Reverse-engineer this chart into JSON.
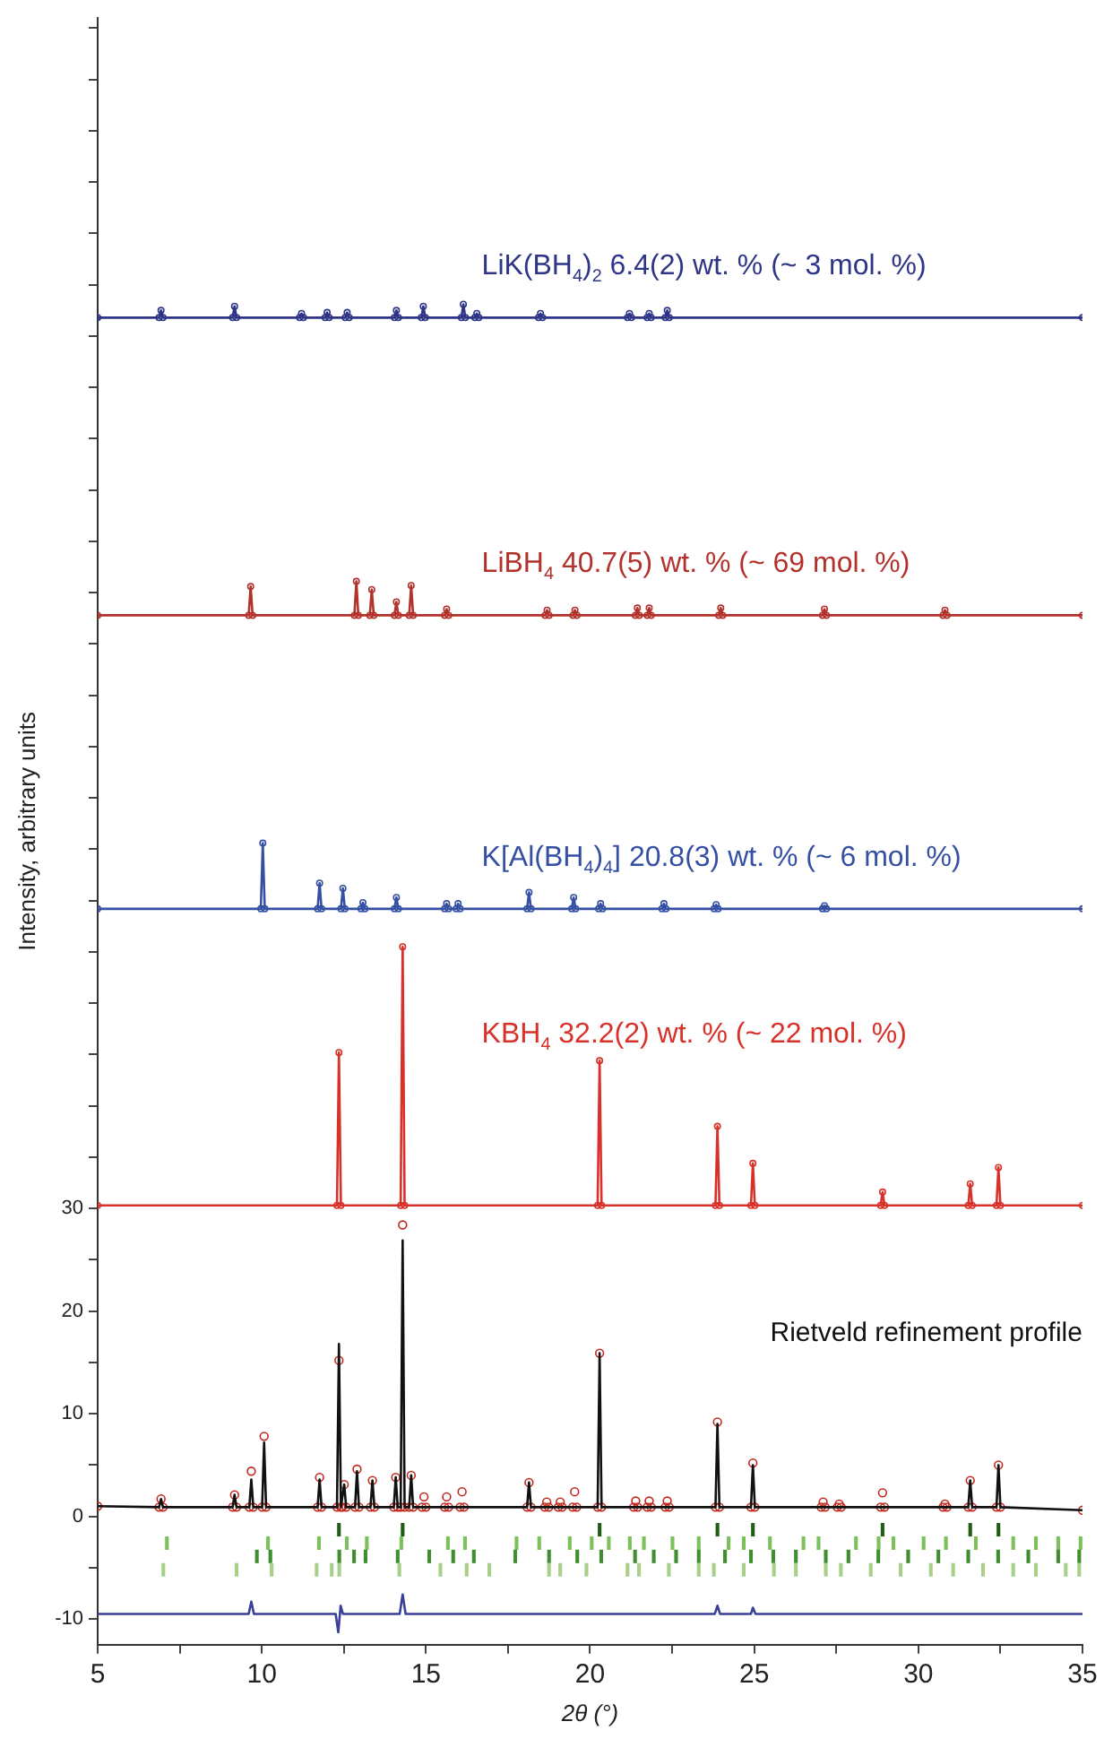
{
  "chart_data": {
    "type": "line",
    "xlabel": "2θ (°)",
    "ylabel": "Intensity, arbitrary units",
    "xlim": [
      5,
      35
    ],
    "xticks": [
      5,
      {
        "value": 7.5,
        "label": null
      },
      10,
      {
        "value": 12.5,
        "label": null
      },
      15,
      {
        "value": 17.5,
        "label": null
      },
      20,
      {
        "value": 22.5,
        "label": null
      },
      25,
      {
        "value": 27.5,
        "label": null
      },
      30,
      {
        "value": 32.5,
        "label": null
      },
      35
    ],
    "ylim": [
      -12.5,
      146
    ],
    "yticks": [
      -10,
      {
        "value": -5,
        "label": null
      },
      0,
      {
        "value": 5,
        "label": null
      },
      10,
      {
        "value": 15,
        "label": null
      },
      20,
      {
        "value": 25,
        "label": null
      },
      30,
      {
        "value": 35,
        "label": null
      },
      {
        "value": 40,
        "label": null
      },
      {
        "value": 45,
        "label": null
      },
      {
        "value": 50,
        "label": null
      },
      {
        "value": 55,
        "label": null
      },
      {
        "value": 60,
        "label": null
      },
      {
        "value": 65,
        "label": null
      },
      {
        "value": 70,
        "label": null
      },
      {
        "value": 75,
        "label": null
      },
      {
        "value": 80,
        "label": null
      },
      {
        "value": 85,
        "label": null
      },
      {
        "value": 90,
        "label": null
      },
      {
        "value": 95,
        "label": null
      },
      {
        "value": 100,
        "label": null
      },
      {
        "value": 105,
        "label": null
      },
      {
        "value": 110,
        "label": null
      },
      {
        "value": 115,
        "label": null
      },
      {
        "value": 120,
        "label": null
      },
      {
        "value": 125,
        "label": null
      },
      {
        "value": 130,
        "label": null
      },
      {
        "value": 135,
        "label": null
      },
      {
        "value": 140,
        "label": null
      },
      {
        "value": 145,
        "label": null
      }
    ],
    "tick_labels": "xy",
    "grid": false,
    "legend": false,
    "annotations": [
      "Rietveld refinement profile"
    ],
    "series": [
      {
        "name": "LiK(BH$_{4}$)$_{2}$ 6.4(2) wt. % (~ 3 mol. %)",
        "color": "#2e3587",
        "marker": "circle",
        "x": [
          5,
          6.87,
          6.93,
          6.99,
          9.11,
          9.17,
          9.23,
          11.15,
          11.21,
          11.27,
          11.93,
          11.99,
          12.05,
          12.54,
          12.6,
          12.66,
          14.04,
          14.1,
          14.16,
          14.86,
          14.92,
          14.98,
          16.08,
          16.14,
          16.2,
          16.49,
          16.55,
          16.61,
          18.43,
          18.49,
          18.55,
          21.14,
          21.2,
          21.26,
          21.74,
          21.8,
          21.86,
          22.29,
          22.35,
          22.41,
          35
        ],
        "values": [
          116.8,
          116.8,
          117.5,
          116.8,
          116.8,
          117.9,
          116.8,
          116.8,
          117.2,
          116.8,
          116.8,
          117.3,
          116.8,
          116.8,
          117.3,
          116.8,
          116.8,
          117.5,
          116.8,
          116.8,
          117.9,
          116.8,
          116.8,
          118.1,
          116.8,
          116.8,
          117.2,
          116.8,
          116.8,
          117.2,
          116.8,
          116.8,
          117.2,
          116.8,
          116.8,
          117.2,
          116.8,
          116.8,
          117.5,
          116.8,
          116.8
        ]
      },
      {
        "name": "LiBH$_{4}$ 40.7(5) wt. % (~ 69 mol. %)",
        "color": "#b2322b",
        "marker": "circle",
        "x": [
          5,
          9.6,
          9.66,
          9.72,
          12.82,
          12.88,
          12.94,
          13.29,
          13.35,
          13.41,
          14.04,
          14.1,
          14.16,
          14.49,
          14.55,
          14.61,
          15.57,
          15.63,
          15.69,
          18.63,
          18.69,
          18.75,
          19.48,
          19.54,
          19.6,
          21.38,
          21.44,
          21.5,
          21.74,
          21.8,
          21.86,
          23.92,
          23.98,
          24.04,
          27.08,
          27.14,
          27.2,
          30.75,
          30.81,
          30.87,
          35
        ],
        "values": [
          87.8,
          87.8,
          90.6,
          87.8,
          87.8,
          91.1,
          87.8,
          87.8,
          90.3,
          87.8,
          87.8,
          89.1,
          87.8,
          87.8,
          90.7,
          87.8,
          87.8,
          88.4,
          87.8,
          87.8,
          88.3,
          87.8,
          87.8,
          88.3,
          87.8,
          87.8,
          88.5,
          87.8,
          87.8,
          88.5,
          87.8,
          87.8,
          88.5,
          87.8,
          87.8,
          88.4,
          87.8,
          87.8,
          88.3,
          87.8,
          87.8
        ]
      },
      {
        "name": "K[Al(BH$_{4}$)$_{4}$] 20.8(3) wt. % (~ 6 mol. %)",
        "color": "#3550a3",
        "marker": "circle",
        "x": [
          5,
          9.97,
          10.03,
          10.09,
          11.7,
          11.76,
          11.82,
          12.41,
          12.47,
          12.53,
          13.02,
          13.08,
          13.14,
          14.04,
          14.1,
          14.16,
          15.57,
          15.63,
          15.69,
          15.92,
          15.98,
          16.04,
          18.08,
          18.14,
          18.2,
          19.44,
          19.5,
          19.56,
          20.26,
          20.32,
          20.38,
          22.19,
          22.25,
          22.31,
          23.78,
          23.84,
          23.9,
          27.08,
          27.14,
          27.2,
          35
        ],
        "values": [
          59.2,
          59.2,
          65.6,
          59.2,
          59.2,
          61.7,
          59.2,
          59.2,
          61.2,
          59.2,
          59.2,
          59.8,
          59.2,
          59.2,
          60.3,
          59.2,
          59.2,
          59.7,
          59.2,
          59.2,
          59.7,
          59.2,
          59.2,
          60.8,
          59.2,
          59.2,
          60.3,
          59.2,
          59.2,
          59.7,
          59.2,
          59.2,
          59.7,
          59.2,
          59.2,
          59.6,
          59.2,
          59.2,
          59.5,
          59.2,
          59.2
        ]
      },
      {
        "name": "KBH$_{4}$ 32.2(2) wt. % (~ 22 mol. %)",
        "color": "#d8312a",
        "marker": "circle",
        "x": [
          5,
          12.29,
          12.35,
          12.41,
          14.23,
          14.29,
          14.35,
          20.23,
          20.29,
          20.35,
          23.82,
          23.88,
          23.94,
          24.9,
          24.96,
          25.02,
          28.85,
          28.91,
          28.97,
          31.52,
          31.58,
          31.64,
          32.38,
          32.44,
          32.5,
          35
        ],
        "values": [
          30.3,
          30.3,
          45.2,
          30.3,
          30.3,
          55.5,
          30.3,
          30.3,
          44.4,
          30.3,
          30.3,
          38.0,
          30.3,
          30.3,
          34.4,
          30.3,
          30.3,
          31.6,
          30.3,
          30.3,
          32.4,
          30.3,
          30.3,
          34.0,
          30.3,
          30.3
        ]
      },
      {
        "type": "scatter",
        "color": "#c0281e",
        "marker": "circle",
        "x": [
          5,
          6.87,
          6.93,
          6.99,
          9.11,
          9.17,
          9.23,
          9.62,
          9.68,
          9.74,
          10.01,
          10.07,
          10.13,
          11.7,
          11.76,
          11.82,
          12.29,
          12.35,
          12.41,
          12.45,
          12.51,
          12.57,
          12.84,
          12.9,
          12.96,
          13.31,
          13.37,
          13.43,
          14.02,
          14.08,
          14.14,
          14.23,
          14.29,
          14.35,
          14.49,
          14.55,
          14.61,
          14.88,
          14.94,
          15.0,
          15.57,
          15.63,
          15.69,
          16.04,
          16.1,
          16.16,
          18.08,
          18.14,
          18.2,
          18.62,
          18.68,
          18.74,
          19.03,
          19.09,
          19.15,
          19.47,
          19.53,
          19.59,
          20.23,
          20.29,
          20.35,
          21.33,
          21.39,
          21.45,
          21.74,
          21.8,
          21.86,
          22.29,
          22.35,
          22.41,
          23.82,
          23.88,
          23.94,
          24.9,
          24.96,
          25.02,
          27.04,
          27.1,
          27.16,
          27.53,
          27.59,
          27.65,
          28.85,
          28.91,
          28.97,
          30.75,
          30.81,
          30.87,
          31.52,
          31.58,
          31.64,
          32.38,
          32.44,
          32.5,
          35
        ],
        "values": [
          1.0,
          0.9,
          1.7,
          0.9,
          0.9,
          2.1,
          0.9,
          0.9,
          4.4,
          0.9,
          0.9,
          7.8,
          0.9,
          0.9,
          3.8,
          0.9,
          0.9,
          15.2,
          0.9,
          0.9,
          3.1,
          0.9,
          0.9,
          4.6,
          0.9,
          0.9,
          3.5,
          0.9,
          0.9,
          3.8,
          0.9,
          0.9,
          28.4,
          0.9,
          0.9,
          4.0,
          0.9,
          0.9,
          1.9,
          0.9,
          0.9,
          1.9,
          0.9,
          0.9,
          2.4,
          0.9,
          0.9,
          3.3,
          0.9,
          0.9,
          1.4,
          0.9,
          0.9,
          1.4,
          0.9,
          0.9,
          2.4,
          0.9,
          0.9,
          15.9,
          0.9,
          0.9,
          1.5,
          0.9,
          0.9,
          1.5,
          0.9,
          0.9,
          1.5,
          0.9,
          0.9,
          9.2,
          0.9,
          0.9,
          5.2,
          0.9,
          0.9,
          1.4,
          0.9,
          0.9,
          1.2,
          0.9,
          0.9,
          2.3,
          0.9,
          0.9,
          1.2,
          0.9,
          0.9,
          3.5,
          0.9,
          0.9,
          5.0,
          0.9,
          0.6
        ]
      },
      {
        "color": "#111111",
        "marker": "none",
        "x": [
          5,
          6.87,
          6.93,
          6.99,
          9.11,
          9.17,
          9.23,
          9.62,
          9.68,
          9.74,
          10.01,
          10.07,
          10.13,
          11.7,
          11.76,
          11.82,
          12.29,
          12.35,
          12.41,
          12.45,
          12.51,
          12.57,
          12.84,
          12.9,
          12.96,
          13.31,
          13.37,
          13.43,
          14.02,
          14.08,
          14.14,
          14.23,
          14.29,
          14.35,
          14.49,
          14.55,
          14.61,
          18.08,
          18.14,
          18.2,
          20.23,
          20.29,
          20.35,
          23.82,
          23.88,
          23.94,
          24.9,
          24.96,
          25.02,
          31.52,
          31.58,
          31.64,
          32.38,
          32.44,
          32.5,
          35
        ],
        "values": [
          1.0,
          0.9,
          1.7,
          0.9,
          0.9,
          2.1,
          0.9,
          0.9,
          3.6,
          0.9,
          0.9,
          7.2,
          0.9,
          0.9,
          3.6,
          0.9,
          0.9,
          16.8,
          0.9,
          0.9,
          3.1,
          0.9,
          0.9,
          4.4,
          0.9,
          0.9,
          3.5,
          0.9,
          0.9,
          3.8,
          0.9,
          0.9,
          26.9,
          0.9,
          0.9,
          4.0,
          0.9,
          0.9,
          3.3,
          0.9,
          0.9,
          15.9,
          0.9,
          0.9,
          9.0,
          0.9,
          0.9,
          5.0,
          0.9,
          0.9,
          3.5,
          0.9,
          0.9,
          5.0,
          0.9,
          0.6
        ]
      },
      {
        "color": "#3a3f9a",
        "marker": "none",
        "x": [
          5,
          9.6,
          9.68,
          9.76,
          12.25,
          12.33,
          12.4,
          12.47,
          14.2,
          14.29,
          14.38,
          23.8,
          23.88,
          23.96,
          24.9,
          24.96,
          25.04,
          35
        ],
        "values": [
          -9.5,
          -9.5,
          -8.3,
          -9.5,
          -9.5,
          -11.3,
          -8.7,
          -9.5,
          -9.5,
          -7.6,
          -9.5,
          -9.5,
          -8.7,
          -9.5,
          -9.5,
          -8.9,
          -9.5,
          -9.5
        ]
      },
      {
        "type": "bar",
        "color": "#1f5f14",
        "x": [
          12.35,
          14.29,
          20.29,
          23.88,
          24.96,
          28.91,
          31.58,
          32.44
        ],
        "base": [
          -1.9,
          -1.9,
          -1.9,
          -1.9,
          -1.9,
          -1.9,
          -1.9,
          -1.9
        ],
        "values": [
          1.2,
          1.2,
          1.2,
          1.2,
          1.2,
          1.2,
          1.2,
          1.2
        ]
      },
      {
        "type": "bar",
        "color": "#7cc05a",
        "x": [
          7.11,
          10.19,
          11.74,
          12.59,
          13.2,
          14.25,
          15.67,
          16.19,
          17.76,
          18.45,
          19.38,
          20.05,
          20.57,
          21.21,
          21.64,
          22.51,
          23.31,
          24.22,
          24.68,
          25.48,
          26.5,
          26.96,
          28.1,
          28.79,
          29.24,
          30.16,
          30.84,
          31.75,
          32.89,
          33.58,
          34.26,
          34.94
        ],
        "base": [
          -3.2,
          -3.2,
          -3.2,
          -3.2,
          -3.2,
          -3.2,
          -3.2,
          -3.2,
          -3.2,
          -3.2,
          -3.2,
          -3.2,
          -3.2,
          -3.2,
          -3.2,
          -3.2,
          -3.2,
          -3.2,
          -3.2,
          -3.2,
          -3.2,
          -3.2,
          -3.2,
          -3.2,
          -3.2,
          -3.2,
          -3.2,
          -3.2,
          -3.2,
          -3.2,
          -3.2,
          -3.2
        ],
        "values": [
          1.2,
          1.2,
          1.2,
          1.2,
          1.2,
          1.2,
          1.2,
          1.2,
          1.2,
          1.2,
          1.2,
          1.2,
          1.2,
          1.2,
          1.2,
          1.2,
          1.2,
          1.2,
          1.2,
          1.2,
          1.2,
          1.2,
          1.2,
          1.2,
          1.2,
          1.2,
          1.2,
          1.2,
          1.2,
          1.2,
          1.2,
          1.2
        ]
      },
      {
        "type": "bar",
        "color": "#3f8f2f",
        "x": [
          9.85,
          10.26,
          12.36,
          12.81,
          13.16,
          14.14,
          15.1,
          15.83,
          16.46,
          17.72,
          18.75,
          19.61,
          20.34,
          21.37,
          21.94,
          22.62,
          23.31,
          24.11,
          24.9,
          25.58,
          26.27,
          27.18,
          27.87,
          28.78,
          29.69,
          30.61,
          31.52,
          32.43,
          33.35,
          34.26,
          34.9
        ],
        "base": [
          -4.5,
          -4.5,
          -4.5,
          -4.5,
          -4.5,
          -4.5,
          -4.5,
          -4.5,
          -4.5,
          -4.5,
          -4.5,
          -4.5,
          -4.5,
          -4.5,
          -4.5,
          -4.5,
          -4.5,
          -4.5,
          -4.5,
          -4.5,
          -4.5,
          -4.5,
          -4.5,
          -4.5,
          -4.5,
          -4.5,
          -4.5,
          -4.5,
          -4.5,
          -4.5,
          -4.5
        ],
        "values": [
          1.2,
          1.2,
          1.2,
          1.2,
          1.2,
          1.2,
          1.2,
          1.2,
          1.2,
          1.2,
          1.2,
          1.2,
          1.2,
          1.2,
          1.2,
          1.2,
          1.2,
          1.2,
          1.2,
          1.2,
          1.2,
          1.2,
          1.2,
          1.2,
          1.2,
          1.2,
          1.2,
          1.2,
          1.2,
          1.2,
          1.2
        ]
      },
      {
        "type": "bar",
        "color": "#a8d08a",
        "x": [
          7.0,
          9.23,
          10.3,
          11.67,
          12.13,
          12.36,
          14.19,
          15.44,
          16.24,
          16.93,
          18.75,
          19.09,
          19.89,
          21.14,
          21.49,
          22.4,
          23.31,
          23.77,
          24.68,
          25.6,
          26.27,
          27.18,
          27.64,
          28.55,
          29.46,
          30.38,
          31.06,
          31.97,
          32.89,
          33.58,
          34.49,
          34.9
        ],
        "base": [
          -5.8,
          -5.8,
          -5.8,
          -5.8,
          -5.8,
          -5.8,
          -5.8,
          -5.8,
          -5.8,
          -5.8,
          -5.8,
          -5.8,
          -5.8,
          -5.8,
          -5.8,
          -5.8,
          -5.8,
          -5.8,
          -5.8,
          -5.8,
          -5.8,
          -5.8,
          -5.8,
          -5.8,
          -5.8,
          -5.8,
          -5.8,
          -5.8,
          -5.8,
          -5.8,
          -5.8,
          -5.8
        ],
        "values": [
          1.2,
          1.2,
          1.2,
          1.2,
          1.2,
          1.2,
          1.2,
          1.2,
          1.2,
          1.2,
          1.2,
          1.2,
          1.2,
          1.2,
          1.2,
          1.2,
          1.2,
          1.2,
          1.2,
          1.2,
          1.2,
          1.2,
          1.2,
          1.2,
          1.2,
          1.2,
          1.2,
          1.2,
          1.2,
          1.2,
          1.2,
          1.2
        ]
      }
    ]
  }
}
